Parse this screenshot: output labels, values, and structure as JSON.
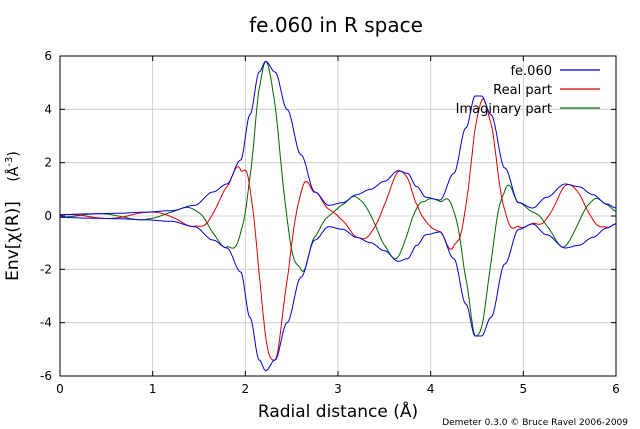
{
  "chart_data": {
    "type": "line",
    "title": "fe.060 in R space",
    "xlabel": "Radial distance    (Å)",
    "ylabel_main": "Env[χ(R)]",
    "ylabel_unit_pre": "(Å",
    "ylabel_unit_sup": "-3",
    "ylabel_unit_post": ")",
    "xlim": [
      0,
      6
    ],
    "ylim": [
      -6,
      6
    ],
    "xticks": [
      0,
      1,
      2,
      3,
      4,
      5,
      6
    ],
    "yticks": [
      -6,
      -4,
      -2,
      0,
      2,
      4,
      6
    ],
    "grid": true,
    "legend_position": "top-right",
    "credit": "Demeter 0.3.0 © Bruce Ravel 2006-2009",
    "series": [
      {
        "name": "fe.060",
        "role": "envelope",
        "color": "#0000dd",
        "envelope_points": [
          [
            0,
            0.05
          ],
          [
            0.3,
            0.08
          ],
          [
            0.6,
            0.1
          ],
          [
            0.9,
            0.14
          ],
          [
            1.2,
            0.2
          ],
          [
            1.45,
            0.4
          ],
          [
            1.65,
            0.9
          ],
          [
            1.8,
            1.2
          ],
          [
            1.95,
            2.1
          ],
          [
            2.05,
            3.8
          ],
          [
            2.15,
            5.4
          ],
          [
            2.22,
            5.8
          ],
          [
            2.32,
            5.4
          ],
          [
            2.45,
            4.0
          ],
          [
            2.6,
            2.3
          ],
          [
            2.75,
            0.9
          ],
          [
            2.9,
            0.4
          ],
          [
            3.05,
            0.5
          ],
          [
            3.2,
            0.8
          ],
          [
            3.35,
            1.0
          ],
          [
            3.5,
            1.3
          ],
          [
            3.65,
            1.7
          ],
          [
            3.75,
            1.6
          ],
          [
            3.85,
            1.1
          ],
          [
            3.95,
            0.7
          ],
          [
            4.1,
            0.6
          ],
          [
            4.25,
            1.6
          ],
          [
            4.38,
            3.3
          ],
          [
            4.48,
            4.5
          ],
          [
            4.55,
            4.5
          ],
          [
            4.65,
            3.8
          ],
          [
            4.8,
            1.8
          ],
          [
            4.95,
            0.5
          ],
          [
            5.1,
            0.3
          ],
          [
            5.25,
            0.7
          ],
          [
            5.45,
            1.2
          ],
          [
            5.6,
            1.1
          ],
          [
            5.75,
            0.8
          ],
          [
            5.9,
            0.45
          ],
          [
            6,
            0.3
          ]
        ]
      },
      {
        "name": "Real part",
        "role": "real",
        "color": "#dd0000"
      },
      {
        "name": "Imaginary part",
        "role": "imaginary",
        "color": "#006600"
      }
    ]
  }
}
